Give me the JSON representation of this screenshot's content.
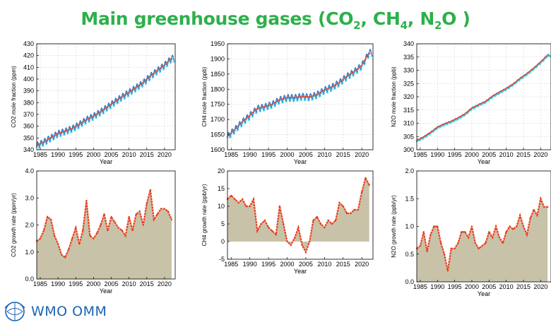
{
  "title": {
    "main": "Main greenhouse gases (CO",
    "sub1": "2",
    "mid1": ", CH",
    "sub2": "4",
    "mid2": ", N",
    "sub3": "2",
    "end": "O )"
  },
  "logo": {
    "text": "WMO OMM",
    "icon": "wmo-emblem-icon"
  },
  "colors": {
    "series_line": "#2b6cd0",
    "series_points": "#4fd0e0",
    "fit": "#e84020",
    "rate_fill": "#c8c2a8",
    "title": "#2db04b"
  },
  "chart_data": [
    {
      "type": "line",
      "gas": "CO2",
      "xlabel": "Year",
      "ylabel": "CO2 mole fraction (ppm)",
      "xlim": [
        1984,
        2023
      ],
      "ylim": [
        340,
        430
      ],
      "xticks": [
        1985,
        1990,
        1995,
        2000,
        2005,
        2010,
        2015,
        2020
      ],
      "yticks": [
        340,
        350,
        360,
        370,
        380,
        390,
        400,
        410,
        420,
        430
      ],
      "x": [
        1984,
        1986,
        1988,
        1990,
        1992,
        1994,
        1996,
        1998,
        2000,
        2002,
        2004,
        2006,
        2008,
        2010,
        2012,
        2014,
        2016,
        2018,
        2020,
        2022
      ],
      "values": [
        343.8,
        346.8,
        350.5,
        354.0,
        356.0,
        358.3,
        361.8,
        365.8,
        368.8,
        372.5,
        376.8,
        381.0,
        385.2,
        389.0,
        393.1,
        397.2,
        402.8,
        407.6,
        412.1,
        417.9
      ],
      "seasonal_amplitude": 2.5,
      "grid": true
    },
    {
      "type": "line",
      "gas": "CH4",
      "xlabel": "Year",
      "ylabel": "CH4 mole fraction (ppb)",
      "xlim": [
        1984,
        2023
      ],
      "ylim": [
        1600,
        1950
      ],
      "xticks": [
        1985,
        1990,
        1995,
        2000,
        2005,
        2010,
        2015,
        2020
      ],
      "yticks": [
        1600,
        1650,
        1700,
        1750,
        1800,
        1850,
        1900,
        1950
      ],
      "x": [
        1984,
        1986,
        1988,
        1990,
        1992,
        1994,
        1996,
        1998,
        2000,
        2002,
        2004,
        2006,
        2008,
        2010,
        2012,
        2014,
        2016,
        2018,
        2020,
        2022
      ],
      "values": [
        1645,
        1668,
        1693,
        1714,
        1737,
        1743,
        1751,
        1766,
        1773,
        1773,
        1777,
        1775,
        1783,
        1798,
        1808,
        1823,
        1843,
        1859,
        1879,
        1922
      ],
      "seasonal_amplitude": 10,
      "grid": true
    },
    {
      "type": "line",
      "gas": "N2O",
      "xlabel": "Year",
      "ylabel": "N2O mole fraction (ppb)",
      "xlim": [
        1984,
        2023
      ],
      "ylim": [
        300,
        340
      ],
      "xticks": [
        1985,
        1990,
        1995,
        2000,
        2005,
        2010,
        2015,
        2020
      ],
      "yticks": [
        300,
        305,
        310,
        315,
        320,
        325,
        330,
        335,
        340
      ],
      "x": [
        1984,
        1986,
        1988,
        1990,
        1992,
        1994,
        1996,
        1998,
        2000,
        2002,
        2004,
        2006,
        2008,
        2010,
        2012,
        2014,
        2016,
        2018,
        2020,
        2022
      ],
      "values": [
        303.6,
        304.9,
        306.6,
        308.6,
        309.8,
        310.8,
        312.1,
        313.6,
        315.8,
        317.1,
        318.3,
        320.3,
        321.8,
        323.2,
        324.9,
        327.0,
        328.8,
        330.9,
        333.2,
        335.8
      ],
      "seasonal_amplitude": 0.2,
      "grid": true
    },
    {
      "type": "area",
      "gas": "CO2",
      "xlabel": "Year",
      "ylabel": "CO2 growth rate (ppm/yr)",
      "xlim": [
        1984,
        2023
      ],
      "ylim": [
        0,
        4
      ],
      "xticks": [
        1985,
        1990,
        1995,
        2000,
        2005,
        2010,
        2015,
        2020
      ],
      "yticks": [
        "0.0",
        "1.0",
        "2.0",
        "3.0",
        "4.0"
      ],
      "x": [
        1984,
        1985,
        1986,
        1987,
        1988,
        1989,
        1990,
        1991,
        1992,
        1993,
        1994,
        1995,
        1996,
        1997,
        1998,
        1999,
        2000,
        2001,
        2002,
        2003,
        2004,
        2005,
        2006,
        2007,
        2008,
        2009,
        2010,
        2011,
        2012,
        2013,
        2014,
        2015,
        2016,
        2017,
        2018,
        2019,
        2020,
        2021,
        2022
      ],
      "values": [
        1.4,
        1.5,
        1.8,
        2.3,
        2.2,
        1.6,
        1.3,
        0.9,
        0.8,
        1.1,
        1.5,
        1.9,
        1.3,
        1.8,
        2.9,
        1.6,
        1.5,
        1.7,
        2.0,
        2.4,
        1.8,
        2.3,
        2.1,
        1.9,
        1.8,
        1.6,
        2.3,
        1.8,
        2.4,
        2.5,
        2.0,
        2.8,
        3.3,
        2.2,
        2.4,
        2.6,
        2.6,
        2.5,
        2.2
      ],
      "grid": false
    },
    {
      "type": "area",
      "gas": "CH4",
      "xlabel": "Year",
      "ylabel": "CH4 growth rate (ppb/yr)",
      "xlim": [
        1984,
        2023
      ],
      "ylim": [
        -5,
        20
      ],
      "xticks": [
        1985,
        1990,
        1995,
        2000,
        2005,
        2010,
        2015,
        2020
      ],
      "yticks": [
        "-5",
        "0",
        "5",
        "10",
        "15",
        "20"
      ],
      "x": [
        1984,
        1985,
        1986,
        1987,
        1988,
        1989,
        1990,
        1991,
        1992,
        1993,
        1994,
        1995,
        1996,
        1997,
        1998,
        1999,
        2000,
        2001,
        2002,
        2003,
        2004,
        2005,
        2006,
        2007,
        2008,
        2009,
        2010,
        2011,
        2012,
        2013,
        2014,
        2015,
        2016,
        2017,
        2018,
        2019,
        2020,
        2021,
        2022
      ],
      "values": [
        12,
        13,
        12,
        11,
        12,
        10,
        10,
        12,
        3,
        5,
        6,
        4,
        3,
        2,
        10,
        5,
        0,
        -1,
        1,
        4,
        -1,
        -3,
        0,
        6,
        7,
        5,
        4,
        6,
        5,
        6,
        11,
        10,
        8,
        8,
        9,
        9,
        14,
        18,
        16
      ],
      "grid": false
    },
    {
      "type": "area",
      "gas": "N2O",
      "xlabel": "Year",
      "ylabel": "N2O growth rate (ppb/yr)",
      "xlim": [
        1984,
        2023
      ],
      "ylim": [
        0,
        2
      ],
      "xticks": [
        1985,
        1990,
        1995,
        2000,
        2005,
        2010,
        2015,
        2020
      ],
      "yticks": [
        "0.0",
        "0.5",
        "1.0",
        "1.5",
        "2.0"
      ],
      "x": [
        1984,
        1985,
        1986,
        1987,
        1988,
        1989,
        1990,
        1991,
        1992,
        1993,
        1994,
        1995,
        1996,
        1997,
        1998,
        1999,
        2000,
        2001,
        2002,
        2003,
        2004,
        2005,
        2006,
        2007,
        2008,
        2009,
        2010,
        2011,
        2012,
        2013,
        2014,
        2015,
        2016,
        2017,
        2018,
        2019,
        2020,
        2021,
        2022
      ],
      "values": [
        0.6,
        0.65,
        0.9,
        0.55,
        0.85,
        1.0,
        1.0,
        0.7,
        0.5,
        0.2,
        0.6,
        0.6,
        0.7,
        0.9,
        0.9,
        0.8,
        1.0,
        0.7,
        0.6,
        0.65,
        0.7,
        0.9,
        0.8,
        1.0,
        0.8,
        0.7,
        0.9,
        1.0,
        0.95,
        1.0,
        1.2,
        1.0,
        0.85,
        1.15,
        1.3,
        1.2,
        1.5,
        1.35,
        1.35
      ],
      "grid": false
    }
  ]
}
